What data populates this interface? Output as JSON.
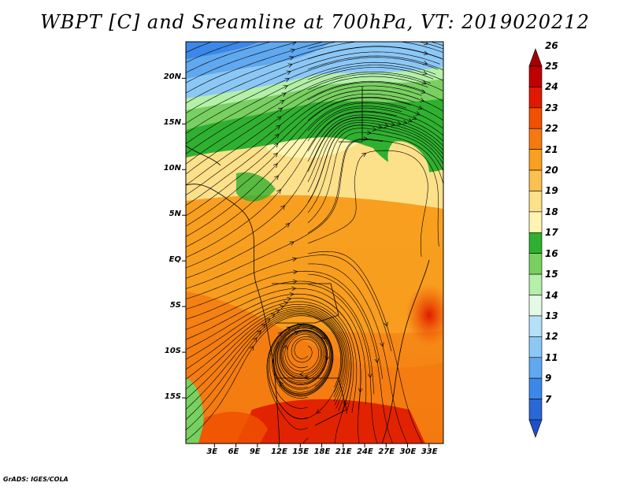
{
  "title": "WBPT [C] and Sreamline at 700hPa, VT: 2019020212",
  "credit": "GrADS: IGES/COLA",
  "map": {
    "lon_range": [
      -1,
      35
    ],
    "lat_range": [
      -20,
      24
    ],
    "lon_ticks": [
      {
        "value": 3,
        "label": "3E"
      },
      {
        "value": 6,
        "label": "6E"
      },
      {
        "value": 9,
        "label": "9E"
      },
      {
        "value": 12,
        "label": "12E"
      },
      {
        "value": 15,
        "label": "15E"
      },
      {
        "value": 18,
        "label": "18E"
      },
      {
        "value": 21,
        "label": "21E"
      },
      {
        "value": 24,
        "label": "24E"
      },
      {
        "value": 27,
        "label": "27E"
      },
      {
        "value": 30,
        "label": "30E"
      },
      {
        "value": 33,
        "label": "33E"
      }
    ],
    "lat_ticks": [
      {
        "value": 20,
        "label": "20N"
      },
      {
        "value": 15,
        "label": "15N"
      },
      {
        "value": 10,
        "label": "10N"
      },
      {
        "value": 5,
        "label": "5N"
      },
      {
        "value": 0,
        "label": "EQ"
      },
      {
        "value": -5,
        "label": "5S"
      },
      {
        "value": -10,
        "label": "10S"
      },
      {
        "value": -15,
        "label": "15S"
      }
    ]
  },
  "colorbar": {
    "levels": [
      {
        "label": "26",
        "color": "#a50000"
      },
      {
        "label": "25",
        "color": "#c00000"
      },
      {
        "label": "24",
        "color": "#e01a00"
      },
      {
        "label": "23",
        "color": "#f05000"
      },
      {
        "label": "22",
        "color": "#f47a10"
      },
      {
        "label": "21",
        "color": "#f8a020"
      },
      {
        "label": "20",
        "color": "#fac050"
      },
      {
        "label": "19",
        "color": "#fde08a"
      },
      {
        "label": "18",
        "color": "#fff5b0"
      },
      {
        "label": "17",
        "color": "#30b030"
      },
      {
        "label": "16",
        "color": "#78d060"
      },
      {
        "label": "15",
        "color": "#b4f0a8"
      },
      {
        "label": "14",
        "color": "#e4fae6"
      },
      {
        "label": "13",
        "color": "#b4e0f8"
      },
      {
        "label": "12",
        "color": "#8cc8f6"
      },
      {
        "label": "11",
        "color": "#60a8ef"
      },
      {
        "label": "9",
        "color": "#3c88e8"
      },
      {
        "label": "7",
        "color": "#2a68d8"
      },
      {
        "label": "",
        "color": "#1e50c8"
      }
    ]
  }
}
